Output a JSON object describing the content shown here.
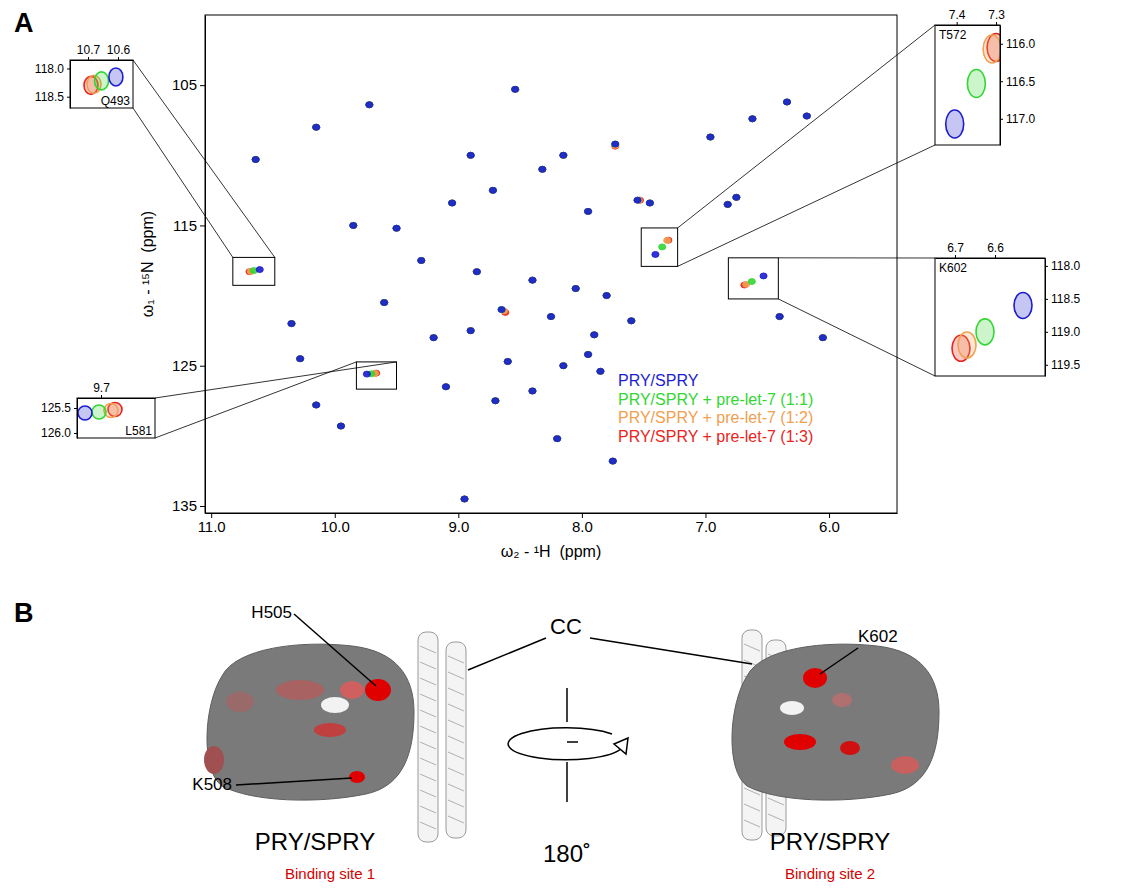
{
  "figure": {
    "panel_labels": [
      "A",
      "B"
    ]
  },
  "chart_data": [
    {
      "type": "scatter",
      "x_label": "ω₂ - ¹H  (ppm)",
      "y_label": "ω₁ - ¹⁵N  (ppm)",
      "xlim": [
        11.05,
        5.45
      ],
      "ylim": [
        100,
        135.5
      ],
      "xticks": [
        {
          "value": 11,
          "label": "11.0"
        },
        {
          "value": 10,
          "label": "10.0"
        },
        {
          "value": 9,
          "label": "9.0"
        },
        {
          "value": 8,
          "label": "8.0"
        },
        {
          "value": 7,
          "label": "7.0"
        },
        {
          "value": 6,
          "label": "6.0"
        }
      ],
      "yticks": [
        105,
        115,
        125,
        135
      ],
      "legend": "lower right",
      "series": [
        {
          "name": "PRY/SPRY",
          "color": "#1c1cd0",
          "x": [
            9.72,
            8.54,
            7.73,
            6.96,
            6.34,
            6.18,
            10.64,
            8.9,
            8.15,
            8.32,
            9.85,
            9.5,
            9.05,
            8.72,
            7.95,
            7.55,
            7.45,
            6.82,
            6.75,
            10.607,
            7.405,
            6.53,
            9.3,
            8.85,
            8.4,
            8.05,
            7.8,
            9.6,
            8.65,
            8.25,
            8.9,
            7.9,
            7.6,
            9.2,
            10.28,
            9.74,
            8.6,
            8.15,
            7.95,
            9.1,
            8.7,
            8.4,
            7.85,
            9.95,
            8.2,
            7.75,
            10.15,
            6.4,
            6.05,
            8.95,
            10.35,
            10.15,
            6.62
          ],
          "values": [
            106.4,
            105.3,
            109.2,
            108.7,
            106.2,
            107.2,
            110.3,
            110.0,
            110.0,
            111.0,
            115.0,
            115.2,
            113.4,
            112.5,
            114.0,
            113.2,
            113.4,
            113.5,
            113.0,
            118.15,
            117.07,
            118.6,
            117.5,
            118.3,
            118.9,
            119.5,
            120.0,
            120.5,
            121.0,
            121.5,
            122.5,
            122.8,
            121.8,
            123.0,
            124.5,
            125.6,
            124.7,
            125.0,
            124.2,
            126.5,
            127.5,
            126.8,
            125.4,
            129.3,
            130.2,
            131.8,
            127.8,
            121.5,
            123.0,
            134.5,
            122.0,
            108.0,
            107.4
          ]
        },
        {
          "name": "PRY/SPRY + pre-let-7 (1:1)",
          "color": "#33d633",
          "x": [
            9.72,
            8.54,
            7.73,
            6.96,
            6.34,
            6.18,
            10.64,
            8.9,
            8.15,
            8.32,
            9.85,
            9.5,
            9.05,
            8.72,
            7.95,
            7.55,
            7.45,
            6.82,
            6.75,
            10.655,
            7.35,
            6.625,
            9.3,
            8.85,
            8.4,
            8.05,
            7.8,
            9.6,
            8.65,
            8.25,
            8.9,
            7.9,
            7.6,
            9.2,
            10.28,
            9.705,
            8.6,
            8.15,
            7.95,
            9.1,
            8.7,
            8.4,
            7.85,
            9.95,
            8.2,
            7.75,
            10.15,
            6.4,
            6.05,
            8.95,
            10.35,
            10.15,
            6.62
          ],
          "values": [
            106.4,
            105.3,
            109.2,
            108.7,
            106.2,
            107.2,
            110.3,
            110.0,
            110.0,
            111.0,
            115.0,
            115.2,
            113.4,
            112.5,
            114.0,
            113.2,
            113.4,
            113.5,
            113.0,
            118.22,
            116.53,
            119.0,
            117.5,
            118.3,
            118.9,
            119.5,
            120.0,
            120.5,
            121.0,
            121.5,
            122.5,
            122.8,
            121.8,
            123.0,
            124.5,
            125.58,
            124.7,
            125.0,
            124.2,
            126.5,
            127.5,
            126.8,
            125.4,
            129.3,
            130.2,
            131.8,
            127.8,
            121.5,
            123.0,
            134.5,
            122.0,
            108.0,
            107.4
          ]
        },
        {
          "name": "PRY/SPRY + pre-let-7 (1:2)",
          "color": "#f0a050",
          "x": [
            9.72,
            8.54,
            7.73,
            6.96,
            6.34,
            6.18,
            10.64,
            8.9,
            8.15,
            8.32,
            9.85,
            9.5,
            9.05,
            8.72,
            7.95,
            7.54,
            7.45,
            6.82,
            6.75,
            10.68,
            7.31,
            6.67,
            9.3,
            8.85,
            8.4,
            8.05,
            7.8,
            9.6,
            8.63,
            8.25,
            8.9,
            7.9,
            7.6,
            9.2,
            10.28,
            9.675,
            8.6,
            8.15,
            7.95,
            9.1,
            8.7,
            8.4,
            7.85,
            9.95,
            8.2,
            7.75,
            10.15,
            6.4,
            6.05,
            8.95,
            10.35,
            10.15,
            6.62
          ],
          "values": [
            106.4,
            105.3,
            109.3,
            108.7,
            106.2,
            107.2,
            110.3,
            110.0,
            110.0,
            111.0,
            115.0,
            115.2,
            113.4,
            112.5,
            114.0,
            113.2,
            113.4,
            113.5,
            113.0,
            118.28,
            116.07,
            119.2,
            117.5,
            118.3,
            118.9,
            119.5,
            120.0,
            120.5,
            121.1,
            121.5,
            122.5,
            122.8,
            121.8,
            123.0,
            124.5,
            125.55,
            124.7,
            125.0,
            124.2,
            126.5,
            127.5,
            126.8,
            125.4,
            129.3,
            130.2,
            131.8,
            127.8,
            121.5,
            123.0,
            134.5,
            122.0,
            108.0,
            107.4
          ]
        },
        {
          "name": "PRY/SPRY + pre-let-7 (1:3)",
          "color": "#e8241c",
          "x": [
            9.72,
            8.54,
            7.73,
            6.96,
            6.34,
            6.18,
            10.64,
            8.9,
            8.15,
            8.32,
            9.85,
            9.5,
            9.05,
            8.72,
            7.95,
            7.53,
            7.45,
            6.82,
            6.75,
            10.69,
            7.3,
            6.685,
            9.3,
            8.85,
            8.4,
            8.05,
            7.8,
            9.6,
            8.62,
            8.25,
            8.9,
            7.9,
            7.6,
            9.2,
            10.28,
            9.665,
            8.6,
            8.15,
            7.95,
            9.1,
            8.7,
            8.4,
            7.85,
            9.95,
            8.2,
            7.75,
            10.15,
            6.4,
            6.05,
            8.95,
            10.35,
            10.15,
            6.62
          ],
          "values": [
            106.4,
            105.3,
            109.35,
            108.7,
            106.2,
            107.2,
            110.3,
            110.0,
            110.0,
            111.0,
            115.0,
            115.2,
            113.4,
            112.5,
            114.0,
            113.2,
            113.4,
            113.5,
            113.0,
            118.3,
            116.05,
            119.25,
            117.5,
            118.3,
            118.9,
            119.5,
            120.0,
            120.5,
            121.2,
            121.5,
            122.5,
            122.8,
            121.8,
            123.0,
            124.5,
            125.53,
            124.7,
            125.0,
            124.2,
            126.5,
            127.5,
            126.8,
            125.4,
            129.3,
            130.2,
            131.8,
            127.8,
            121.5,
            123.0,
            134.5,
            122.0,
            108.0,
            107.4
          ]
        }
      ]
    },
    {
      "type": "scatter",
      "annotation": "Q493",
      "xlim": [
        10.76,
        10.55
      ],
      "ylim": [
        117.85,
        118.7
      ],
      "xticks": [
        10.7,
        10.6
      ],
      "yticks": [
        {
          "value": 118,
          "label": "118.0"
        },
        118.5
      ],
      "series": [
        {
          "color": "#1c1cd0",
          "x": [
            10.607
          ],
          "values": [
            118.15
          ]
        },
        {
          "color": "#33d633",
          "x": [
            10.655
          ],
          "values": [
            118.22
          ]
        },
        {
          "color": "#f0a050",
          "x": [
            10.68
          ],
          "values": [
            118.28
          ]
        },
        {
          "color": "#e8241c",
          "x": [
            10.69
          ],
          "values": [
            118.3
          ]
        }
      ]
    },
    {
      "type": "scatter",
      "annotation": "L581",
      "xlim": [
        9.76,
        9.565
      ],
      "ylim": [
        125.3,
        126.1
      ],
      "xticks": [
        9.7
      ],
      "yticks": [
        125.5,
        {
          "value": 126,
          "label": "126.0"
        }
      ],
      "series": [
        {
          "color": "#1c1cd0",
          "x": [
            9.74
          ],
          "values": [
            125.6
          ]
        },
        {
          "color": "#33d633",
          "x": [
            9.705
          ],
          "values": [
            125.58
          ]
        },
        {
          "color": "#f0a050",
          "x": [
            9.675
          ],
          "values": [
            125.55
          ]
        },
        {
          "color": "#e8241c",
          "x": [
            9.665
          ],
          "values": [
            125.53
          ]
        }
      ]
    },
    {
      "type": "scatter",
      "annotation": "T572",
      "xlim": [
        7.455,
        7.29
      ],
      "ylim": [
        115.75,
        117.35
      ],
      "xticks": [
        7.4,
        7.3
      ],
      "yticks": [
        {
          "value": 116,
          "label": "116.0"
        },
        116.5,
        {
          "value": 117,
          "label": "117.0"
        }
      ],
      "series": [
        {
          "color": "#1c1cd0",
          "x": [
            7.405
          ],
          "values": [
            117.07
          ]
        },
        {
          "color": "#33d633",
          "x": [
            7.35
          ],
          "values": [
            116.53
          ]
        },
        {
          "color": "#f0a050",
          "x": [
            7.31
          ],
          "values": [
            116.07
          ]
        },
        {
          "color": "#e8241c",
          "x": [
            7.3
          ],
          "values": [
            116.05
          ]
        }
      ]
    },
    {
      "type": "scatter",
      "annotation": "K602",
      "xlim": [
        6.75,
        6.475
      ],
      "ylim": [
        117.88,
        119.67
      ],
      "xticks": [
        6.7,
        6.6
      ],
      "yticks": [
        {
          "value": 118,
          "label": "118.0"
        },
        118.5,
        {
          "value": 119,
          "label": "119.0"
        },
        119.5
      ],
      "series": [
        {
          "color": "#1c1cd0",
          "x": [
            6.53
          ],
          "values": [
            118.6
          ]
        },
        {
          "color": "#33d633",
          "x": [
            6.625
          ],
          "values": [
            119.0
          ]
        },
        {
          "color": "#f0a050",
          "x": [
            6.67
          ],
          "values": [
            119.2
          ]
        },
        {
          "color": "#e8241c",
          "x": [
            6.685
          ],
          "values": [
            119.25
          ]
        }
      ]
    }
  ],
  "panel_b": {
    "structures": [
      {
        "title": "PRY/SPRY",
        "site": "Binding site 1",
        "residues": [
          "H505",
          "K508"
        ]
      },
      {
        "title": "PRY/SPRY",
        "site": "Binding site 2",
        "residues": [
          "K602"
        ]
      }
    ],
    "domain_label": "CC",
    "rotation": "180˚"
  }
}
